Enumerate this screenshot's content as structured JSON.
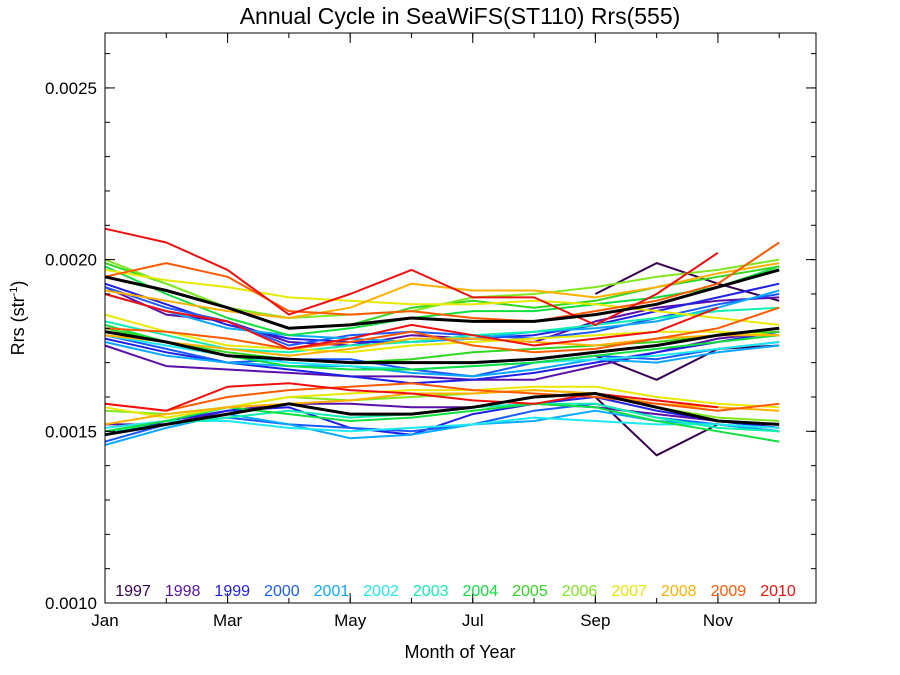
{
  "chart_data": {
    "type": "line",
    "title": "Annual Cycle in SeaWiFS(ST110) Rrs(555)",
    "xlabel": "Month of Year",
    "ylabel_main": "Rrs (str",
    "ylabel_sup": "-1",
    "ylabel_close": ")",
    "xlim": [
      1,
      12.6
    ],
    "ylim": [
      0.001,
      0.00266
    ],
    "x_ticks": [
      {
        "value": 1,
        "label": "Jan"
      },
      {
        "value": 3,
        "label": "Mar"
      },
      {
        "value": 5,
        "label": "May"
      },
      {
        "value": 7,
        "label": "Jul"
      },
      {
        "value": 9,
        "label": "Sep"
      },
      {
        "value": 11,
        "label": "Nov"
      }
    ],
    "y_ticks": [
      {
        "value": 0.001,
        "label": "0.0010"
      },
      {
        "value": 0.0015,
        "label": "0.0015"
      },
      {
        "value": 0.002,
        "label": "0.0020"
      },
      {
        "value": 0.0025,
        "label": "0.0025"
      }
    ],
    "x": [
      1,
      2,
      3,
      4,
      5,
      6,
      7,
      8,
      9,
      10,
      11,
      12
    ],
    "series": [
      {
        "name": "1997",
        "color": "#3a0050",
        "values": [
          null,
          null,
          null,
          null,
          null,
          null,
          null,
          null,
          0.0019,
          0.00199,
          0.00193,
          0.00188
        ]
      },
      {
        "name": "1997",
        "color": "#3a0050",
        "values": [
          null,
          null,
          null,
          null,
          null,
          null,
          null,
          null,
          0.00172,
          0.00165,
          0.00174,
          0.00175
        ]
      },
      {
        "name": "1997",
        "color": "#3a0050",
        "values": [
          null,
          null,
          null,
          null,
          null,
          null,
          null,
          null,
          0.0016,
          0.00143,
          0.00152,
          0.0015
        ]
      },
      {
        "name": "1998",
        "color": "#5a10a8",
        "values": [
          0.00192,
          0.00184,
          0.00182,
          0.00176,
          0.00175,
          0.00178,
          0.00177,
          0.00176,
          0.00182,
          0.00186,
          0.00188,
          0.00189
        ]
      },
      {
        "name": "1998",
        "color": "#5a10a8",
        "values": [
          0.00175,
          0.00169,
          0.00168,
          0.00167,
          0.00166,
          0.00166,
          0.00165,
          0.00165,
          0.00169,
          0.00173,
          0.00177,
          0.00179
        ]
      },
      {
        "name": "1998",
        "color": "#5a10a8",
        "values": [
          0.00152,
          0.00152,
          0.00156,
          0.00158,
          0.00158,
          0.00157,
          0.00157,
          0.00158,
          0.00157,
          0.00155,
          0.00153,
          0.00151
        ]
      },
      {
        "name": "1999",
        "color": "#2020e6",
        "values": [
          0.00193,
          0.00187,
          0.00181,
          0.00177,
          0.00176,
          0.00176,
          0.00177,
          0.00178,
          0.00181,
          0.00185,
          0.00189,
          0.00193
        ]
      },
      {
        "name": "1999",
        "color": "#2020e6",
        "values": [
          0.00177,
          0.00173,
          0.0017,
          0.00168,
          0.00166,
          0.00164,
          0.00165,
          0.00167,
          0.0017,
          0.00173,
          0.00176,
          0.00179
        ]
      },
      {
        "name": "1999",
        "color": "#2020e6",
        "values": [
          0.00149,
          0.00153,
          0.00156,
          0.00157,
          0.00151,
          0.00149,
          0.00155,
          0.00158,
          0.0016,
          0.00156,
          0.00153,
          0.00151
        ]
      },
      {
        "name": "2000",
        "color": "#1a5aff",
        "values": [
          0.00192,
          0.00186,
          0.00182,
          0.00175,
          0.00178,
          0.00179,
          0.00178,
          0.00177,
          0.00179,
          0.00183,
          0.00187,
          0.0019
        ]
      },
      {
        "name": "2000",
        "color": "#1a5aff",
        "values": [
          0.00178,
          0.00174,
          0.0017,
          0.00171,
          0.00171,
          0.00168,
          0.00166,
          0.0017,
          0.00172,
          0.00171,
          0.00174,
          0.00176
        ]
      },
      {
        "name": "2000",
        "color": "#1a5aff",
        "values": [
          0.00147,
          0.00152,
          0.00154,
          0.00152,
          0.00151,
          0.0015,
          0.00152,
          0.00156,
          0.00158,
          0.00154,
          0.00152,
          0.0015
        ]
      },
      {
        "name": "2001",
        "color": "#0aa8ff",
        "values": [
          0.0019,
          0.00185,
          0.0018,
          0.00178,
          0.00177,
          0.00176,
          0.00177,
          0.00179,
          0.0018,
          0.00182,
          0.00186,
          0.00191
        ]
      },
      {
        "name": "2001",
        "color": "#0aa8ff",
        "values": [
          0.00176,
          0.00172,
          0.0017,
          0.00169,
          0.00169,
          0.00167,
          0.00166,
          0.00168,
          0.00171,
          0.0017,
          0.00173,
          0.00175
        ]
      },
      {
        "name": "2001",
        "color": "#0aa8ff",
        "values": [
          0.00146,
          0.00151,
          0.00155,
          0.00152,
          0.00148,
          0.00149,
          0.00152,
          0.00153,
          0.00156,
          0.00153,
          0.00152,
          0.0015
        ]
      },
      {
        "name": "2002",
        "color": "#20e8f0",
        "values": [
          0.00178,
          0.00175,
          0.00172,
          0.0017,
          0.00169,
          0.00168,
          0.00169,
          0.0017,
          0.00171,
          0.00172,
          0.00174,
          0.00176
        ]
      },
      {
        "name": "2002",
        "color": "#20e8f0",
        "values": [
          0.00151,
          0.00153,
          0.00153,
          0.00151,
          0.0015,
          0.00151,
          0.00152,
          0.00154,
          0.00153,
          0.00152,
          0.00152,
          0.00151
        ]
      },
      {
        "name": "2003",
        "color": "#10f0b0",
        "values": [
          0.00182,
          0.00178,
          0.00174,
          0.00173,
          0.00175,
          0.00176,
          0.00178,
          0.00179,
          0.00181,
          0.00183,
          0.00185,
          0.00186
        ]
      },
      {
        "name": "2003",
        "color": "#10f0b0",
        "values": [
          0.0015,
          0.00152,
          0.00154,
          0.00156,
          0.00154,
          0.00155,
          0.00157,
          0.00158,
          0.00158,
          0.00154,
          0.00151,
          0.0015
        ]
      },
      {
        "name": "2004",
        "color": "#10e040",
        "values": [
          0.00198,
          0.0019,
          0.00183,
          0.00178,
          0.0018,
          0.00183,
          0.00185,
          0.00185,
          0.00187,
          0.00189,
          0.00192,
          0.00198
        ]
      },
      {
        "name": "2004",
        "color": "#10e040",
        "values": [
          0.00181,
          0.00176,
          0.00172,
          0.00169,
          0.00168,
          0.00168,
          0.00169,
          0.0017,
          0.00172,
          0.00174,
          0.00176,
          0.00178
        ]
      },
      {
        "name": "2004",
        "color": "#10e040",
        "values": [
          0.0015,
          0.00153,
          0.00157,
          0.00155,
          0.00153,
          0.00154,
          0.00156,
          0.00158,
          0.00157,
          0.00153,
          0.0015,
          0.00147
        ]
      },
      {
        "name": "2005",
        "color": "#30d820",
        "values": [
          0.00199,
          0.00193,
          0.00186,
          0.0018,
          0.00181,
          0.00186,
          0.00188,
          0.00186,
          0.00188,
          0.00192,
          0.00195,
          0.00198
        ]
      },
      {
        "name": "2005",
        "color": "#30d820",
        "values": [
          0.0018,
          0.00176,
          0.00173,
          0.00171,
          0.0017,
          0.00171,
          0.00173,
          0.00174,
          0.00175,
          0.00176,
          0.00178,
          0.00179
        ]
      },
      {
        "name": "2006",
        "color": "#80e820",
        "values": [
          0.002,
          0.00193,
          0.00186,
          0.00183,
          0.00184,
          0.00185,
          0.00189,
          0.0019,
          0.00192,
          0.00195,
          0.00197,
          0.002
        ]
      },
      {
        "name": "2006",
        "color": "#80e820",
        "values": [
          0.00156,
          0.00155,
          0.00157,
          0.0016,
          0.00159,
          0.0016,
          0.00161,
          0.00162,
          0.00161,
          0.00157,
          0.00154,
          0.00153
        ]
      },
      {
        "name": "2007",
        "color": "#e8e800",
        "values": [
          0.00197,
          0.00194,
          0.00192,
          0.00189,
          0.00188,
          0.00187,
          0.00187,
          0.00188,
          0.00187,
          0.00185,
          0.00183,
          0.00181
        ]
      },
      {
        "name": "2007",
        "color": "#e8e800",
        "values": [
          0.00184,
          0.00179,
          0.00175,
          0.00174,
          0.00173,
          0.00175,
          0.00176,
          0.00177,
          0.00178,
          0.00179,
          0.00179,
          0.00178
        ]
      },
      {
        "name": "2007",
        "color": "#e8e800",
        "values": [
          0.00157,
          0.00154,
          0.00157,
          0.0016,
          0.00161,
          0.00162,
          0.00162,
          0.00163,
          0.00163,
          0.0016,
          0.00158,
          0.00157
        ]
      },
      {
        "name": "2008",
        "color": "#ffb000",
        "values": [
          0.00191,
          0.00188,
          0.00185,
          0.00183,
          0.00186,
          0.00193,
          0.00191,
          0.00191,
          0.00189,
          0.00192,
          0.00196,
          0.00199
        ]
      },
      {
        "name": "2008",
        "color": "#ffb000",
        "values": [
          0.00178,
          0.00176,
          0.00174,
          0.00172,
          0.00174,
          0.00177,
          0.00177,
          0.00176,
          0.00175,
          0.00177,
          0.00178,
          0.00178
        ]
      },
      {
        "name": "2008",
        "color": "#ffb000",
        "values": [
          0.00152,
          0.00155,
          0.00157,
          0.00158,
          0.00159,
          0.00161,
          0.00161,
          0.00162,
          0.00161,
          0.00158,
          0.00157,
          0.00156
        ]
      },
      {
        "name": "2009",
        "color": "#ff5a00",
        "values": [
          0.00195,
          0.00199,
          0.00195,
          0.00185,
          0.00184,
          0.00185,
          0.00183,
          0.00182,
          0.00185,
          0.00188,
          0.00193,
          0.00205
        ]
      },
      {
        "name": "2009",
        "color": "#ff5a00",
        "values": [
          0.0018,
          0.00179,
          0.00177,
          0.00174,
          0.00176,
          0.00179,
          0.00175,
          0.00173,
          0.00174,
          0.00177,
          0.0018,
          0.00186
        ]
      },
      {
        "name": "2009",
        "color": "#ff5a00",
        "values": [
          0.00158,
          0.00156,
          0.0016,
          0.00162,
          0.00163,
          0.00164,
          0.00162,
          0.00161,
          0.0016,
          0.00158,
          0.00156,
          0.00158
        ]
      },
      {
        "name": "2010",
        "color": "#f01010",
        "values": [
          0.00209,
          0.00205,
          0.00197,
          0.00184,
          0.0019,
          0.00197,
          0.00189,
          0.00189,
          0.00181,
          0.0019,
          0.00202,
          null
        ]
      },
      {
        "name": "2010",
        "color": "#f01010",
        "values": [
          0.0019,
          0.00185,
          0.00182,
          0.00174,
          0.00177,
          0.00181,
          0.00178,
          0.00175,
          0.00177,
          0.00179,
          0.00186,
          null
        ]
      },
      {
        "name": "2010",
        "color": "#f01010",
        "values": [
          0.00158,
          0.00156,
          0.00163,
          0.00164,
          0.00162,
          0.00161,
          0.00159,
          0.00158,
          0.00161,
          0.00159,
          0.00157,
          null
        ]
      },
      {
        "name": "",
        "color": "#000000",
        "bold": true,
        "values": [
          0.00195,
          0.00191,
          0.00186,
          0.0018,
          0.00181,
          0.00183,
          0.00182,
          0.00182,
          0.00184,
          0.00187,
          0.00192,
          0.00197
        ]
      },
      {
        "name": "",
        "color": "#000000",
        "bold": true,
        "values": [
          0.00179,
          0.00176,
          0.00172,
          0.00171,
          0.0017,
          0.0017,
          0.0017,
          0.00171,
          0.00173,
          0.00175,
          0.00178,
          0.0018
        ]
      },
      {
        "name": "",
        "color": "#000000",
        "bold": true,
        "values": [
          0.00149,
          0.00152,
          0.00155,
          0.00158,
          0.00155,
          0.00155,
          0.00157,
          0.0016,
          0.00161,
          0.00157,
          0.00153,
          0.00152
        ]
      }
    ],
    "legend": [
      {
        "label": "1997",
        "color": "#3a0050"
      },
      {
        "label": "1998",
        "color": "#5a10a8"
      },
      {
        "label": "1999",
        "color": "#2020e6"
      },
      {
        "label": "2000",
        "color": "#1a5aff"
      },
      {
        "label": "2001",
        "color": "#0aa8ff"
      },
      {
        "label": "2002",
        "color": "#20e8f0"
      },
      {
        "label": "2003",
        "color": "#10f0b0"
      },
      {
        "label": "2004",
        "color": "#10e040"
      },
      {
        "label": "2005",
        "color": "#30d820"
      },
      {
        "label": "2006",
        "color": "#80e820"
      },
      {
        "label": "2007",
        "color": "#e8e800"
      },
      {
        "label": "2008",
        "color": "#ffb000"
      },
      {
        "label": "2009",
        "color": "#ff5a00"
      },
      {
        "label": "2010",
        "color": "#f01010"
      }
    ],
    "legend_placement": "bottom-inside",
    "grid": false
  }
}
